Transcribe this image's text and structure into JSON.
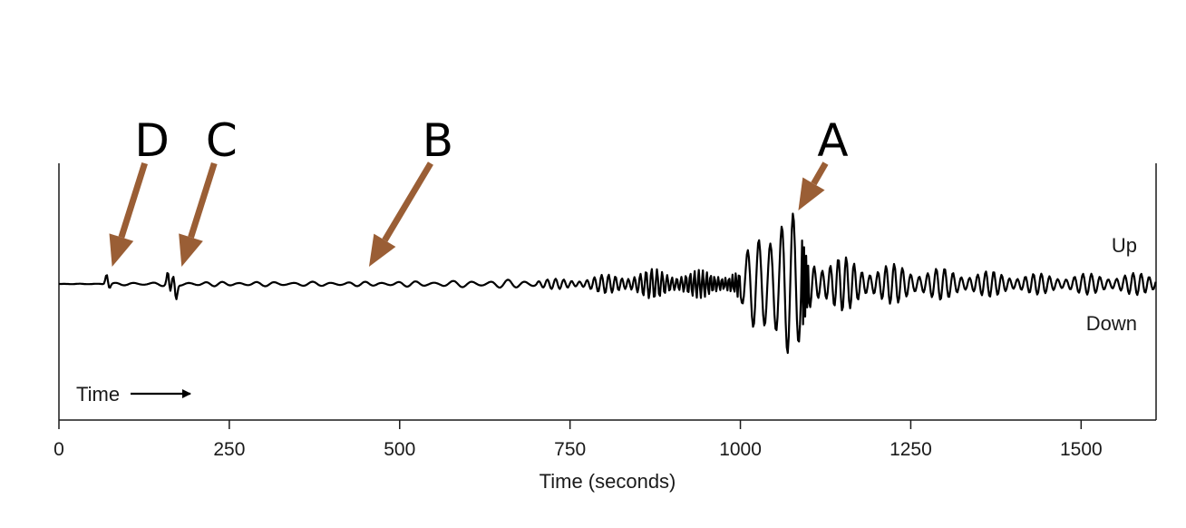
{
  "chart_data": {
    "type": "line",
    "title": "",
    "xlabel": "Time (seconds)",
    "ylabel": "",
    "xlim": [
      0,
      1610
    ],
    "ylim": [
      -1,
      1
    ],
    "x_ticks": [
      0,
      250,
      500,
      750,
      1000,
      1250,
      1500
    ],
    "grid": false,
    "legend": "none",
    "annotations": {
      "up_label": "Up",
      "down_label": "Down",
      "time_arrow_label": "Time"
    },
    "markers": [
      {
        "label": "D",
        "x": 78
      },
      {
        "label": "C",
        "x": 180
      },
      {
        "label": "B",
        "x": 455
      },
      {
        "label": "A",
        "x": 1085
      }
    ],
    "series": [
      {
        "color": "#000000",
        "envelope": [
          {
            "x": 0,
            "amp": 0.0
          },
          {
            "x": 60,
            "amp": 0.005
          },
          {
            "x": 90,
            "amp": 0.012
          },
          {
            "x": 150,
            "amp": 0.02
          },
          {
            "x": 220,
            "amp": 0.02
          },
          {
            "x": 450,
            "amp": 0.02
          },
          {
            "x": 600,
            "amp": 0.03
          },
          {
            "x": 760,
            "amp": 0.05
          },
          {
            "x": 820,
            "amp": 0.1
          },
          {
            "x": 880,
            "amp": 0.14
          },
          {
            "x": 960,
            "amp": 0.12
          },
          {
            "x": 1000,
            "amp": 0.16
          },
          {
            "x": 1030,
            "amp": 0.55
          },
          {
            "x": 1050,
            "amp": 1.0
          },
          {
            "x": 1070,
            "amp": 0.75
          },
          {
            "x": 1100,
            "amp": 0.32
          },
          {
            "x": 1180,
            "amp": 0.2
          },
          {
            "x": 1320,
            "amp": 0.13
          },
          {
            "x": 1450,
            "amp": 0.09
          },
          {
            "x": 1610,
            "amp": 0.1
          }
        ],
        "spikes": [
          {
            "x": 70,
            "y": 0.09
          },
          {
            "x": 74,
            "y": -0.04
          },
          {
            "x": 160,
            "y": 0.12
          },
          {
            "x": 163,
            "y": -0.1
          },
          {
            "x": 168,
            "y": 0.06
          },
          {
            "x": 172,
            "y": -0.14
          }
        ]
      }
    ],
    "colors": {
      "trace": "#000000",
      "axis": "#1a1a1a",
      "arrow": "#9a5e35",
      "letter": "#000000"
    }
  }
}
